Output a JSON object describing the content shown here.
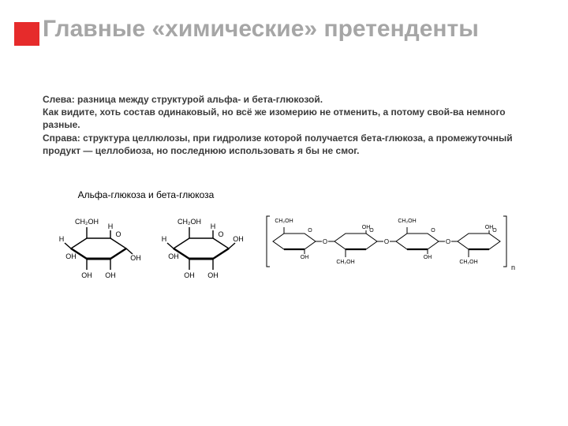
{
  "accent_color": "#e62b2b",
  "title_color": "#a6a6a6",
  "text_color": "#3b3b3b",
  "title": "Главные «химические» претенденты",
  "body": {
    "line1": "Слева: разница между структурой альфа- и бета-глюкозой.",
    "line2": "Как видите, хоть состав одинаковый, но всё же изомерию не отменить, а потому свой-ва немного разные.",
    "line3": "Справа: структура целлюлозы, при гидролизе которой получается бета-глюкоза, а промежуточный продукт — целлобиоза, но последнюю использовать я бы не смог."
  },
  "figure_left": {
    "caption": "Альфа-глюкоза и бета-глюкоза",
    "labels": {
      "ch2oh": "CH₂OH",
      "oh": "OH",
      "h": "H",
      "o": "O"
    }
  },
  "figure_right": {
    "labels": {
      "ch2oh": "CH₂OH",
      "oh": "OH",
      "h": "H",
      "o": "O",
      "n": "n"
    },
    "repeat_units": 4
  }
}
